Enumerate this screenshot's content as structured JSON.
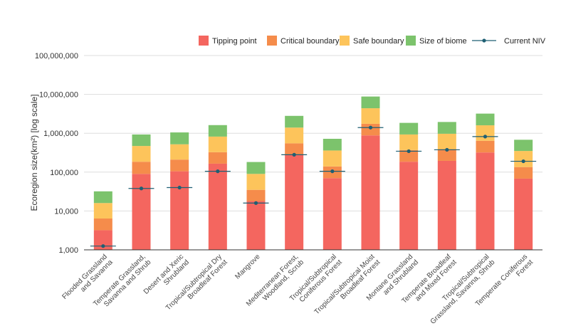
{
  "chart_data": {
    "type": "bar",
    "stacked": true,
    "title": "",
    "xlabel": "",
    "ylabel": "Ecoregion size(km²) [log scale]",
    "yscale": "log",
    "ylim": [
      1000,
      100000000
    ],
    "yticks": [
      {
        "value": 1000,
        "label": "1,000"
      },
      {
        "value": 10000,
        "label": "10,000"
      },
      {
        "value": 100000,
        "label": "100,000"
      },
      {
        "value": 1000000,
        "label": "1,000,000"
      },
      {
        "value": 10000000,
        "label": "10,000,000"
      },
      {
        "value": 100000000,
        "label": "100,000,000"
      }
    ],
    "grid": true,
    "legend_position": "top-right",
    "categories": [
      [
        "Flooded Grassland",
        "and Savanna"
      ],
      [
        "Temperate Grassland,",
        "Savanna and Shrub"
      ],
      [
        "Desert and Xeric",
        "Shrubland"
      ],
      [
        "Tropical/Subtropical Dry",
        "Broadleaf Forest"
      ],
      [
        "Mangrove"
      ],
      [
        "Mediterranean Forest,",
        "Woodland, Scrub"
      ],
      [
        "Tropical/Subtropical",
        "Coniferous Forest"
      ],
      [
        "Tropical/Subtropical Moist",
        "Broadleaf Forest"
      ],
      [
        "Montane Grassland",
        "and Shrubland"
      ],
      [
        "Temperate Broadleaf",
        "and Mixed Forest"
      ],
      [
        "Tropical/Subtropical",
        "Grassland, Savanna, Shrub"
      ],
      [
        "Temperate Coniferous",
        "Forest"
      ]
    ],
    "series": [
      {
        "name": "Tipping point",
        "color": "#f4665f",
        "values": [
          3200,
          90000,
          105000,
          165000,
          18000,
          280000,
          70000,
          880000,
          185000,
          195000,
          320000,
          68000
        ]
      },
      {
        "name": "Critical boundary",
        "color": "#f58c4b",
        "values": [
          6400,
          185000,
          210000,
          325000,
          35000,
          550000,
          140000,
          1750000,
          370000,
          390000,
          640000,
          135000
        ]
      },
      {
        "name": "Safe boundary",
        "color": "#fdc45b",
        "values": [
          16000,
          470000,
          520000,
          820000,
          90000,
          1400000,
          360000,
          4400000,
          930000,
          970000,
          1600000,
          350000
        ]
      },
      {
        "name": "Size of biome",
        "color": "#7cc36c",
        "values": [
          32000,
          930000,
          1050000,
          1620000,
          182000,
          2800000,
          720000,
          8800000,
          1850000,
          1950000,
          3200000,
          680000
        ]
      }
    ],
    "current_niv": {
      "name": "Current NIV",
      "color": "#1f5f73",
      "values": [
        1250,
        38000,
        40000,
        105000,
        16000,
        280000,
        105000,
        1400000,
        345000,
        375000,
        820000,
        190000
      ]
    }
  }
}
